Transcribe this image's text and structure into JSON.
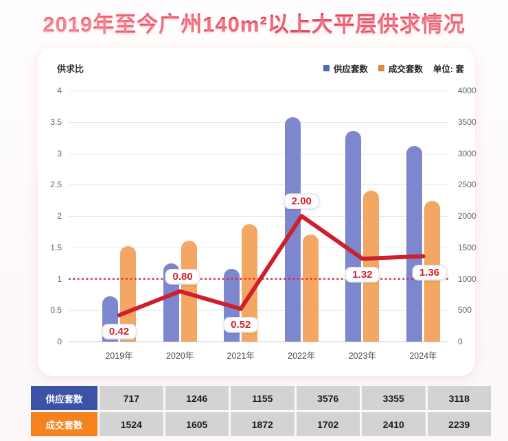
{
  "title": "2019年至今广州140m²以上大平层供求情况",
  "legend": {
    "items": [
      {
        "label": "供应套数",
        "color": "#4e6cae"
      },
      {
        "label": "成交套数",
        "color": "#e28a3e"
      }
    ],
    "unit": "单位: 套"
  },
  "chart_data": {
    "type": "bar+line",
    "title": "2019年至今广州140m²以上大平层供求情况",
    "categories": [
      "2019年",
      "2020年",
      "2021年",
      "2022年",
      "2023年",
      "2024年"
    ],
    "series": [
      {
        "name": "供应套数",
        "type": "bar",
        "axis": "right",
        "color": "#7c87ce",
        "values": [
          717,
          1246,
          1155,
          3576,
          3355,
          3118
        ]
      },
      {
        "name": "成交套数",
        "type": "bar",
        "axis": "right",
        "color": "#f4a763",
        "values": [
          1524,
          1605,
          1872,
          1702,
          2410,
          2239
        ]
      },
      {
        "name": "供求比",
        "type": "line",
        "axis": "left",
        "color": "#cf1f2a",
        "values": [
          0.42,
          0.8,
          0.52,
          2.0,
          1.32,
          1.36
        ],
        "labels": [
          "0.42",
          "0.80",
          "0.52",
          "2.00",
          "1.32",
          "1.36"
        ]
      }
    ],
    "left_axis": {
      "label": "供求比",
      "range": [
        0,
        4
      ],
      "ticks": [
        "0",
        "0.5",
        "1",
        "1.5",
        "2",
        "2.5",
        "3",
        "3.5",
        "4"
      ]
    },
    "right_axis": {
      "range": [
        0,
        4000
      ],
      "ticks": [
        "0",
        "500",
        "1000",
        "1500",
        "2000",
        "2500",
        "3000",
        "3500",
        "4000"
      ]
    },
    "reference_line": {
      "value": 1,
      "style": "dotted",
      "color": "#e02430"
    },
    "legend_position": "top-right",
    "grid": true
  },
  "table": {
    "rows": [
      {
        "label": "供应套数",
        "header_color": "#3c52a5",
        "values": [
          "717",
          "1246",
          "1155",
          "3576",
          "3355",
          "3118"
        ]
      },
      {
        "label": "成交套数",
        "header_color": "#f5821e",
        "values": [
          "1524",
          "1605",
          "1872",
          "1702",
          "2410",
          "2239"
        ]
      }
    ]
  }
}
